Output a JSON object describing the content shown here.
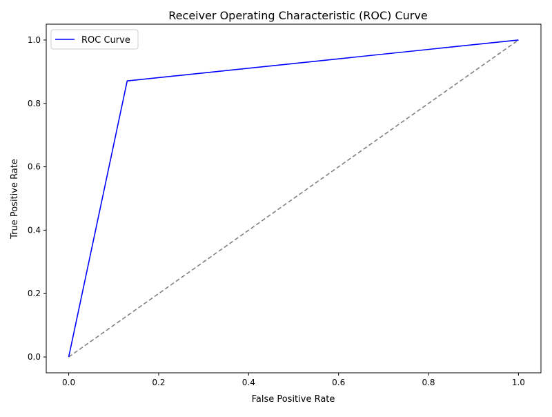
{
  "chart_data": {
    "type": "line",
    "title": "Receiver Operating Characteristic (ROC) Curve",
    "xlabel": "False Positive Rate",
    "ylabel": "True Positive Rate",
    "xlim": [
      -0.05,
      1.05
    ],
    "ylim": [
      -0.05,
      1.05
    ],
    "x_ticks": [
      0.0,
      0.2,
      0.4,
      0.6,
      0.8,
      1.0
    ],
    "x_tick_labels": [
      "0.0",
      "0.2",
      "0.4",
      "0.6",
      "0.8",
      "1.0"
    ],
    "y_ticks": [
      0.0,
      0.2,
      0.4,
      0.6,
      0.8,
      1.0
    ],
    "y_tick_labels": [
      "0.0",
      "0.2",
      "0.4",
      "0.6",
      "0.8",
      "1.0"
    ],
    "grid": false,
    "legend_position": "upper-left",
    "series": [
      {
        "name": "ROC Curve",
        "color": "#0000ff",
        "style": "solid",
        "in_legend": true,
        "x": [
          0.0,
          0.13,
          1.0
        ],
        "y": [
          0.0,
          0.871,
          1.0
        ]
      },
      {
        "name": "",
        "color": "#808080",
        "style": "dashed",
        "in_legend": false,
        "x": [
          0.0,
          1.0
        ],
        "y": [
          0.0,
          1.0
        ]
      }
    ]
  }
}
